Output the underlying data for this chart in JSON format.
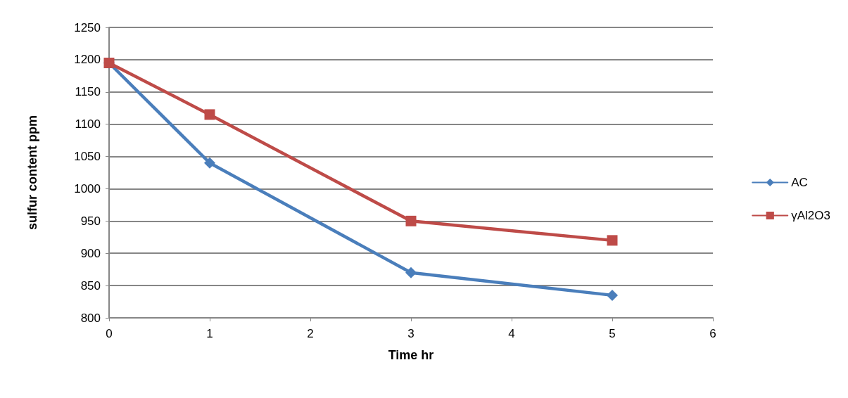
{
  "chart_data": {
    "type": "line",
    "xlabel": "Time hr",
    "ylabel": "sulfur content ppm",
    "x": [
      0,
      1,
      3,
      5
    ],
    "series": [
      {
        "name": "AC",
        "color": "#4a7ebb",
        "marker": "diamond",
        "values": [
          1195,
          1040,
          870,
          835
        ]
      },
      {
        "name": "γAl2O3",
        "color": "#be4b48",
        "marker": "square",
        "values": [
          1195,
          1115,
          950,
          920
        ]
      }
    ],
    "xlim": [
      0,
      6
    ],
    "xticks": [
      0,
      1,
      2,
      3,
      4,
      5,
      6
    ],
    "ylim": [
      800,
      1250
    ],
    "yticks": [
      800,
      850,
      900,
      950,
      1000,
      1050,
      1100,
      1150,
      1200,
      1250
    ],
    "grid": "y",
    "legend": "right",
    "line_style": "solid"
  }
}
